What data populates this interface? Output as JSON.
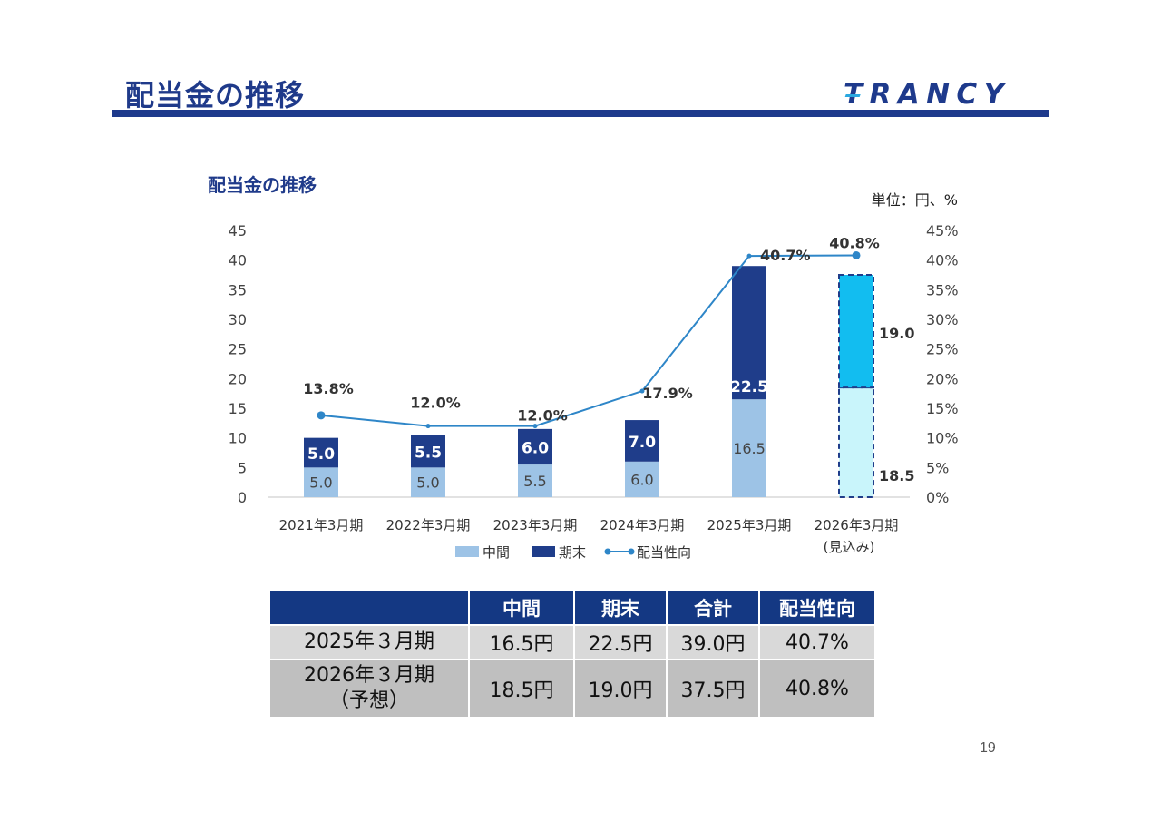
{
  "slide": {
    "title": "配当金の推移",
    "logo_text": "TRANCY",
    "page_number": "19"
  },
  "colors": {
    "brand_navy": "#1e3a8c",
    "interim": "#9dc3e6",
    "year_end": "#1f3d8a",
    "forecast_interim": "#c9f5fb",
    "forecast_year_end": "#12bdf0",
    "payout_line": "#2e86c8",
    "table_header": "#143883"
  },
  "chart_data": {
    "type": "bar",
    "stacked": true,
    "title": "配当金の推移",
    "unit_note": "単位：円、%",
    "categories": [
      "2021年3月期",
      "2022年3月期",
      "2023年3月期",
      "2024年3月期",
      "2025年3月期",
      "2026年3月期"
    ],
    "category_sublabels": [
      "",
      "",
      "",
      "",
      "",
      "(見込み)"
    ],
    "series": [
      {
        "name": "中間",
        "type": "bar",
        "axis": "left",
        "values": [
          5.0,
          5.0,
          5.5,
          6.0,
          16.5,
          18.5
        ],
        "labels": [
          "5.0",
          "5.0",
          "5.5",
          "6.0",
          "16.5",
          "18.5"
        ]
      },
      {
        "name": "期末",
        "type": "bar",
        "axis": "left",
        "values": [
          5.0,
          5.5,
          6.0,
          7.0,
          22.5,
          19.0
        ],
        "labels": [
          "5.0",
          "5.5",
          "6.0",
          "7.0",
          "22.5",
          "19.0"
        ]
      },
      {
        "name": "配当性向",
        "type": "line",
        "axis": "right",
        "values": [
          13.8,
          12.0,
          12.0,
          17.9,
          40.7,
          40.8
        ],
        "labels": [
          "13.8%",
          "12.0%",
          "12.0%",
          "17.9%",
          "40.7%",
          "40.8%"
        ]
      }
    ],
    "forecast_index": 5,
    "ylim_left": [
      0,
      45
    ],
    "yticks_left": [
      "0",
      "5",
      "10",
      "15",
      "20",
      "25",
      "30",
      "35",
      "40",
      "45"
    ],
    "ylim_right": [
      0,
      45
    ],
    "yticks_right": [
      "0%",
      "5%",
      "10%",
      "15%",
      "20%",
      "25%",
      "30%",
      "35%",
      "40%",
      "45%"
    ],
    "grid": false,
    "legend_position": "bottom"
  },
  "table": {
    "headers": [
      "",
      "中間",
      "期末",
      "合計",
      "配当性向"
    ],
    "rows": [
      {
        "label": "2025年３月期",
        "label_sub": "",
        "cells": [
          "16.5円",
          "22.5円",
          "39.0円",
          "40.7%"
        ]
      },
      {
        "label": "2026年３月期",
        "label_sub": "（予想）",
        "cells": [
          "18.5円",
          "19.0円",
          "37.5円",
          "40.8%"
        ]
      }
    ]
  }
}
